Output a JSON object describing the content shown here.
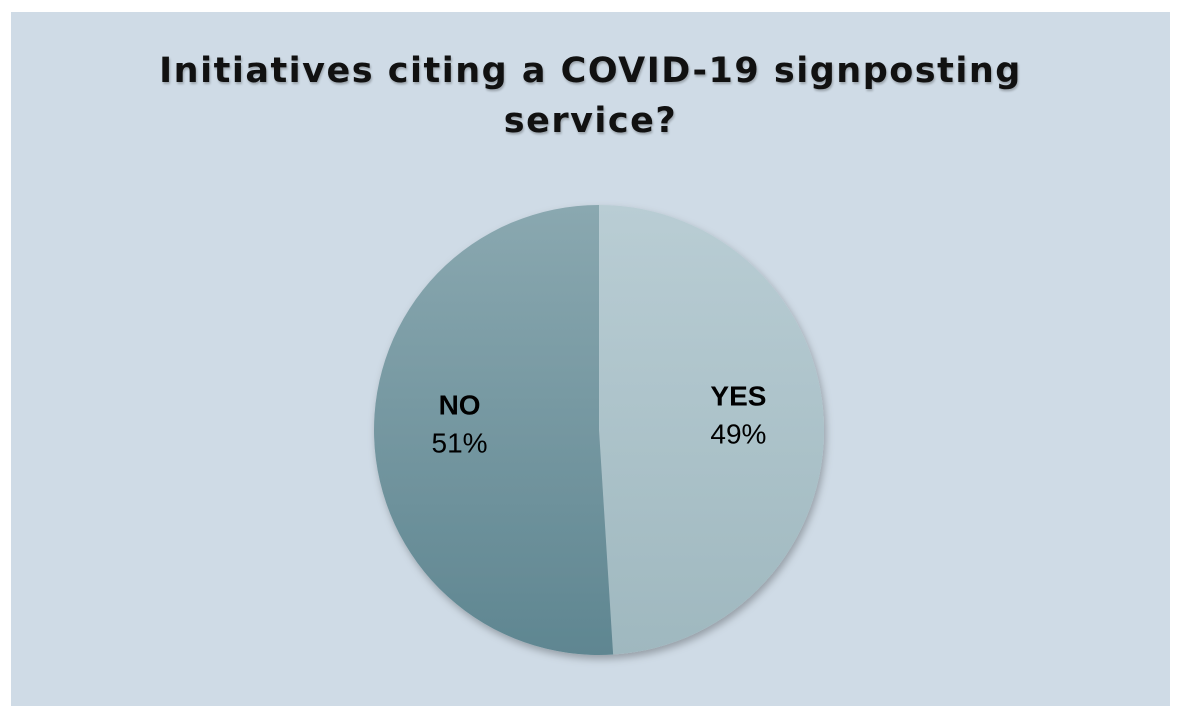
{
  "chart_data": {
    "type": "pie",
    "title_lines": [
      "Initiatives citing a COVID-19 signposting",
      "service?"
    ],
    "categories": [
      "YES",
      "NO"
    ],
    "values": [
      49,
      51
    ],
    "labels": [
      "49%",
      "51%"
    ],
    "colors": {
      "YES": [
        "#b9cdd4",
        "#9fb8bf"
      ],
      "NO": [
        "#8aa8b0",
        "#5f8691"
      ]
    },
    "background": "#cfdbe6",
    "legend": "none"
  }
}
